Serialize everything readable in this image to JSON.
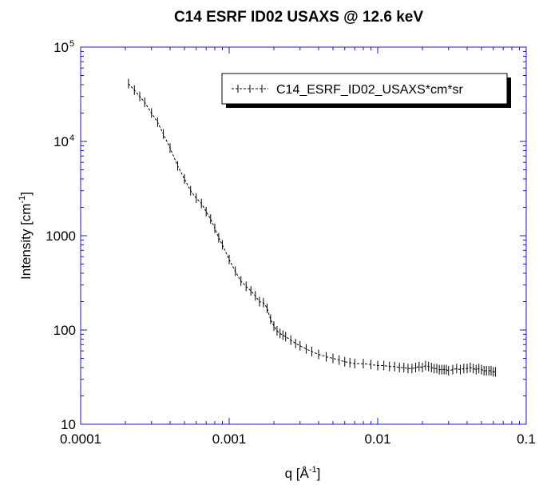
{
  "chart_data": {
    "type": "scatter",
    "title": "C14 ESRF ID02 USAXS @ 12.6 keV",
    "xlabel": "q [Å",
    "xlabel_sup": "-1",
    "xlabel_end": "]",
    "ylabel": "Intensity [cm",
    "ylabel_sup": "-1",
    "ylabel_end": "]",
    "x_scale": "log",
    "y_scale": "log",
    "xlim": [
      0.0001,
      0.1
    ],
    "ylim": [
      10,
      100000
    ],
    "x_ticks": [
      {
        "value": 0.0001,
        "label": "0.0001"
      },
      {
        "value": 0.001,
        "label": "0.001"
      },
      {
        "value": 0.01,
        "label": "0.01"
      },
      {
        "value": 0.1,
        "label": "0.1"
      }
    ],
    "y_ticks": [
      {
        "value": 10,
        "label": "10",
        "sup": ""
      },
      {
        "value": 100,
        "label": "100",
        "sup": ""
      },
      {
        "value": 1000,
        "label": "1000",
        "sup": ""
      },
      {
        "value": 10000,
        "label": "10",
        "sup": "4"
      },
      {
        "value": 100000,
        "label": "10",
        "sup": "5"
      }
    ],
    "grid": false,
    "legend_position": "top-right",
    "axis_color": "#1a1ab4",
    "series": [
      {
        "name": "C14_ESRF_ID02_USAXS*cm*sr",
        "color": "#000000",
        "style": "dashed line with vertical error bars",
        "x": [
          0.00021,
          0.00023,
          0.00025,
          0.00027,
          0.0003,
          0.00033,
          0.00036,
          0.0004,
          0.00045,
          0.0005,
          0.00055,
          0.0006,
          0.00065,
          0.0007,
          0.00075,
          0.0008,
          0.00085,
          0.0009,
          0.001,
          0.0011,
          0.0012,
          0.0013,
          0.0014,
          0.0015,
          0.0016,
          0.0017,
          0.0018,
          0.0019,
          0.002,
          0.0021,
          0.0022,
          0.0023,
          0.0024,
          0.0026,
          0.0028,
          0.003,
          0.0033,
          0.0036,
          0.004,
          0.0045,
          0.005,
          0.0055,
          0.006,
          0.0065,
          0.007,
          0.008,
          0.009,
          0.01,
          0.011,
          0.012,
          0.013,
          0.014,
          0.015,
          0.016,
          0.017,
          0.018,
          0.019,
          0.02,
          0.021,
          0.022,
          0.023,
          0.024,
          0.025,
          0.026,
          0.027,
          0.028,
          0.029,
          0.03,
          0.032,
          0.034,
          0.036,
          0.038,
          0.04,
          0.042,
          0.044,
          0.046,
          0.048,
          0.05,
          0.052,
          0.054,
          0.056,
          0.058,
          0.06,
          0.062
        ],
        "y": [
          41000,
          35000,
          30000,
          26000,
          20000,
          16000,
          12000,
          8500,
          5500,
          4000,
          3000,
          2500,
          2200,
          1800,
          1500,
          1200,
          950,
          800,
          560,
          420,
          330,
          290,
          260,
          230,
          200,
          195,
          170,
          130,
          110,
          98,
          92,
          88,
          85,
          78,
          72,
          68,
          63,
          59,
          55,
          52,
          50,
          48,
          46,
          45,
          44,
          44,
          43,
          42,
          42,
          41,
          41,
          40,
          40,
          39,
          39,
          40,
          41,
          40,
          42,
          41,
          40,
          39,
          39,
          38,
          38,
          38,
          38,
          37,
          38,
          39,
          38,
          39,
          39,
          40,
          39,
          38,
          39,
          38,
          37,
          37,
          37,
          37,
          36,
          36
        ]
      }
    ]
  }
}
